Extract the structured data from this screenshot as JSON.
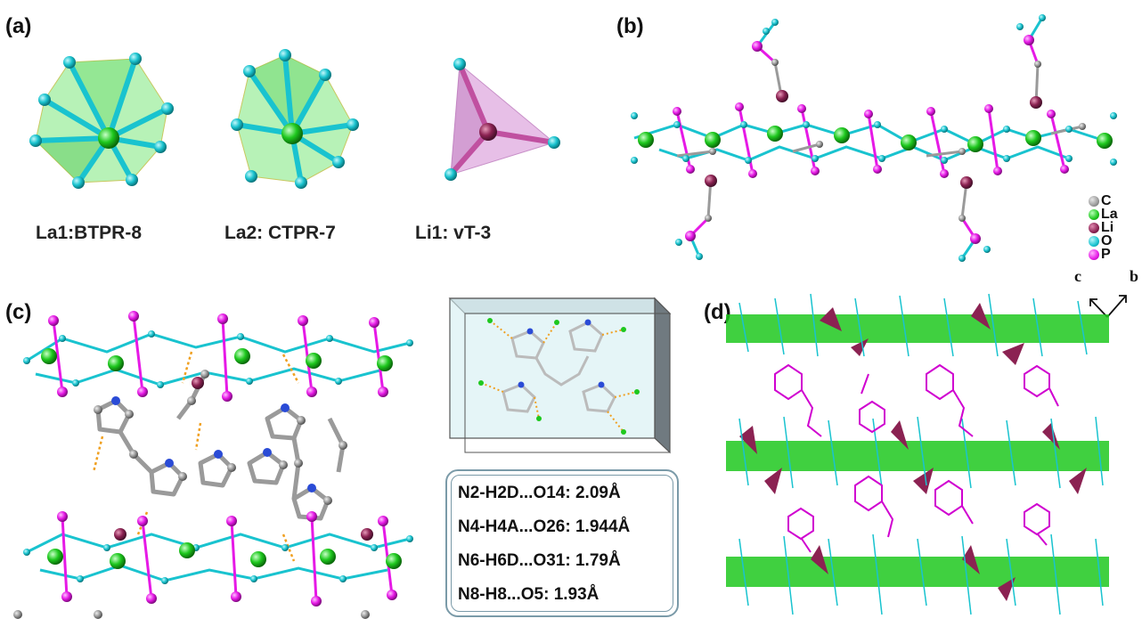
{
  "panels": {
    "a": "(a)",
    "b": "(b)",
    "c": "(c)",
    "d": "(d)"
  },
  "polyhedra": [
    {
      "label": "La1:BTPR-8"
    },
    {
      "label": "La2: CTPR-7"
    },
    {
      "label": "Li1: vT-3"
    }
  ],
  "legend": [
    {
      "label": "C",
      "color": "#9a9a9a"
    },
    {
      "label": "La",
      "color": "#1ec81e"
    },
    {
      "label": "Li",
      "color": "#8b2252"
    },
    {
      "label": "O",
      "color": "#19c3cf"
    },
    {
      "label": "P",
      "color": "#e619e6"
    }
  ],
  "axes": {
    "c": "c",
    "b": "b"
  },
  "hbonds": [
    "N2-H2D...O14: 2.09Å",
    "N4-H4A...O26: 1.944Å",
    "N6-H6D...O31: 1.79Å",
    "N8-H8...O5: 1.93Å"
  ],
  "colors": {
    "la": "#1ec81e",
    "o": "#19c3cf",
    "p": "#e619e6",
    "li": "#8b2252",
    "c": "#9a9a9a",
    "n": "#2a4bd6",
    "hbond": "#f0a020"
  }
}
